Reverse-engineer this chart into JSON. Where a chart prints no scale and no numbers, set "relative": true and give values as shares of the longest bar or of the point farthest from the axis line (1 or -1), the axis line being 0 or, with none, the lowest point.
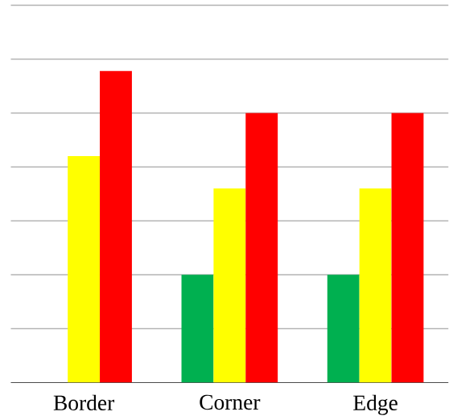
{
  "chart_data": {
    "type": "bar",
    "relative": true,
    "grid": "y",
    "categories": [
      "Border",
      "Corner",
      "Edge"
    ],
    "series": [
      {
        "color": "#00b050",
        "values": [
          null,
          0.346,
          0.346
        ]
      },
      {
        "color": "#ffff00",
        "values": [
          0.727,
          0.623,
          0.623
        ]
      },
      {
        "color": "#ff0000",
        "values": [
          1,
          0.865,
          0.865
        ]
      }
    ]
  }
}
